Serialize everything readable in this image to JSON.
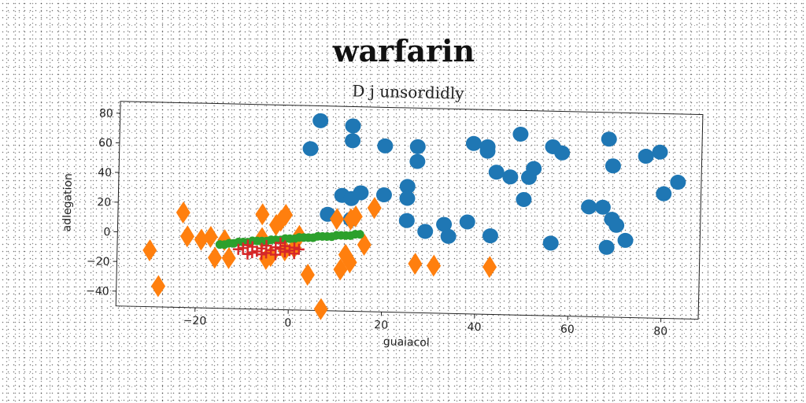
{
  "title": "warfarin",
  "colors": {
    "background": "#ffffff",
    "text": "#222222"
  },
  "chart_data": {
    "type": "scatter",
    "title": "D j unsordidly",
    "xlabel": "guaiacol",
    "ylabel": "adlegation",
    "xlim": [
      -37,
      88
    ],
    "ylim": [
      -50,
      88
    ],
    "xticks": [
      -20,
      0,
      20,
      40,
      60,
      80
    ],
    "yticks": [
      -40,
      -20,
      0,
      20,
      40,
      60,
      80
    ],
    "grid": false,
    "legend": "none",
    "series": [
      {
        "color": "#1f77b4",
        "marker": "circle",
        "points": [
          [
            6,
            78
          ],
          [
            13,
            75
          ],
          [
            13,
            65
          ],
          [
            4,
            59
          ],
          [
            20,
            62
          ],
          [
            27,
            62
          ],
          [
            27,
            52
          ],
          [
            11,
            28
          ],
          [
            13,
            26
          ],
          [
            15,
            30
          ],
          [
            20,
            29
          ],
          [
            25,
            35
          ],
          [
            25,
            27
          ],
          [
            8,
            15
          ],
          [
            13,
            12
          ],
          [
            25,
            12
          ],
          [
            29,
            5
          ],
          [
            33,
            10
          ],
          [
            34,
            2
          ],
          [
            38,
            12
          ],
          [
            39,
            65
          ],
          [
            42,
            60
          ],
          [
            42,
            63
          ],
          [
            44,
            46
          ],
          [
            47,
            43
          ],
          [
            49,
            72
          ],
          [
            50,
            28
          ],
          [
            51,
            43
          ],
          [
            52,
            49
          ],
          [
            56,
            64
          ],
          [
            58,
            60
          ],
          [
            64,
            24
          ],
          [
            67,
            24
          ],
          [
            68,
            70
          ],
          [
            69,
            52
          ],
          [
            69,
            16
          ],
          [
            70,
            12
          ],
          [
            72,
            2
          ],
          [
            76,
            59
          ],
          [
            79,
            62
          ],
          [
            80,
            34
          ],
          [
            83,
            42
          ],
          [
            56,
            -1
          ],
          [
            68,
            -3
          ],
          [
            43,
            3
          ]
        ]
      },
      {
        "color": "#ff7f0e",
        "marker": "diamond",
        "points": [
          [
            -30,
            -12
          ],
          [
            -28,
            -36
          ],
          [
            -23,
            14
          ],
          [
            -22,
            -2
          ],
          [
            -19,
            -4
          ],
          [
            -17,
            -2
          ],
          [
            -16,
            -16
          ],
          [
            -14,
            -4
          ],
          [
            -13,
            -16
          ],
          [
            -6,
            14
          ],
          [
            -6,
            -2
          ],
          [
            -5,
            -16
          ],
          [
            -4,
            -14
          ],
          [
            -3,
            7
          ],
          [
            -2,
            10
          ],
          [
            -1,
            14
          ],
          [
            -1,
            -10
          ],
          [
            1,
            -8
          ],
          [
            2,
            0
          ],
          [
            4,
            -26
          ],
          [
            7,
            -49
          ],
          [
            10,
            12
          ],
          [
            11,
            -22
          ],
          [
            12,
            -12
          ],
          [
            13,
            -17
          ],
          [
            13,
            12
          ],
          [
            14,
            14
          ],
          [
            16,
            -5
          ],
          [
            18,
            20
          ],
          [
            27,
            -17
          ],
          [
            31,
            -18
          ],
          [
            43,
            -18
          ]
        ]
      },
      {
        "color": "#2ca02c",
        "marker": "dot",
        "points": [
          [
            -15,
            -7
          ],
          [
            -14,
            -7
          ],
          [
            -13,
            -6
          ],
          [
            -12,
            -6
          ],
          [
            -11,
            -5
          ],
          [
            -10,
            -5
          ],
          [
            -9,
            -5
          ],
          [
            -8,
            -4
          ],
          [
            -7,
            -4
          ],
          [
            -6,
            -4
          ],
          [
            -5,
            -4
          ],
          [
            -4,
            -3
          ],
          [
            -3,
            -3
          ],
          [
            -2,
            -3
          ],
          [
            -1,
            -2
          ],
          [
            0,
            -2
          ],
          [
            1,
            -2
          ],
          [
            2,
            -1
          ],
          [
            3,
            -1
          ],
          [
            4,
            -1
          ],
          [
            5,
            -1
          ],
          [
            6,
            0
          ],
          [
            7,
            0
          ],
          [
            8,
            0
          ],
          [
            9,
            0
          ],
          [
            10,
            1
          ],
          [
            11,
            1
          ],
          [
            12,
            1
          ],
          [
            13,
            1
          ],
          [
            14,
            2
          ],
          [
            15,
            2
          ]
        ]
      },
      {
        "color": "#d62728",
        "marker": "plus",
        "points": [
          [
            -11,
            -10
          ],
          [
            -10,
            -9
          ],
          [
            -9,
            -7
          ],
          [
            -9,
            -13
          ],
          [
            -8,
            -8
          ],
          [
            -7,
            -11
          ],
          [
            -6,
            -9
          ],
          [
            -5,
            -12
          ],
          [
            -5,
            -7
          ],
          [
            -4,
            -10
          ],
          [
            -3,
            -8
          ],
          [
            -3,
            -13
          ],
          [
            -2,
            -9
          ],
          [
            -1,
            -11
          ],
          [
            -1,
            -7
          ],
          [
            0,
            -10
          ],
          [
            1,
            -12
          ],
          [
            1,
            -8
          ],
          [
            2,
            -9
          ],
          [
            -6,
            -13
          ],
          [
            -8,
            -12
          ],
          [
            -2,
            -5
          ]
        ]
      }
    ]
  }
}
